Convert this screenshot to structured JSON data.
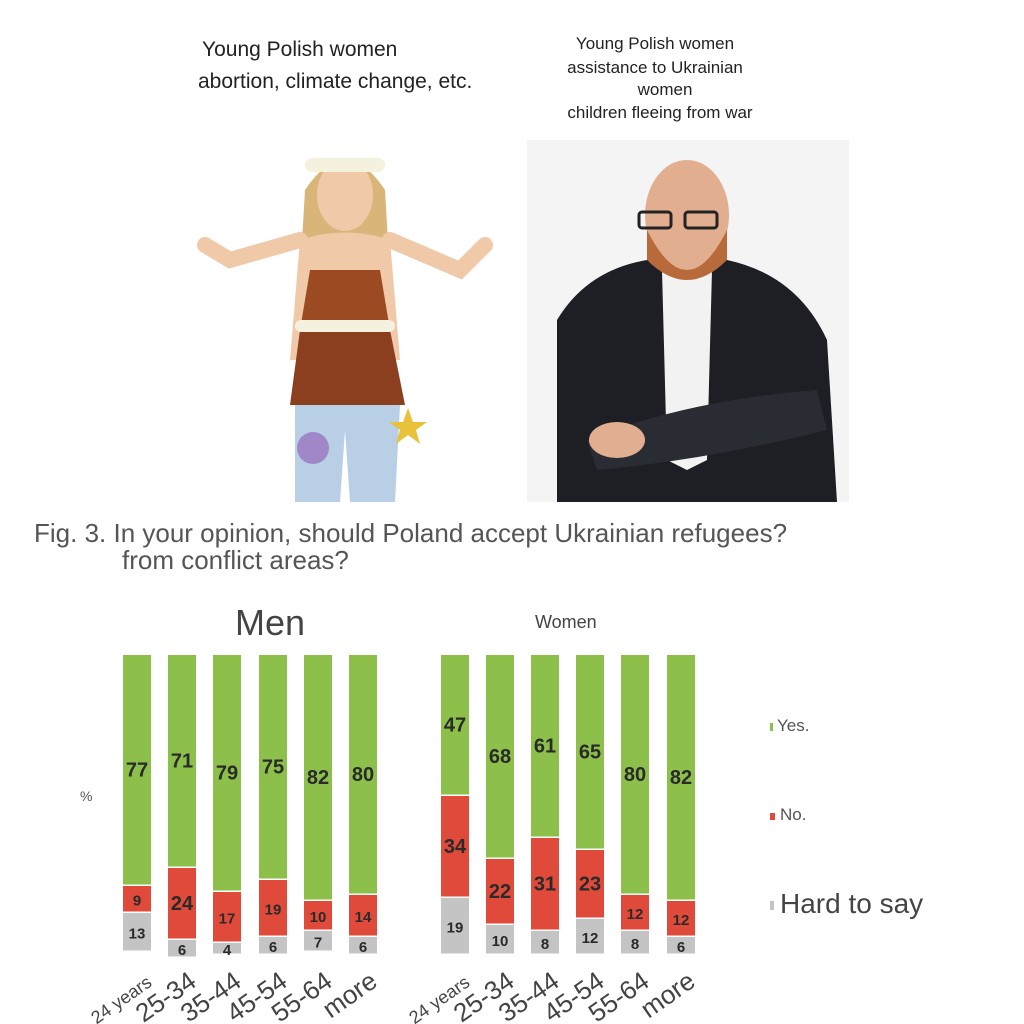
{
  "left_caption": [
    "Young Polish women",
    "abortion, climate change, etc."
  ],
  "right_caption": [
    "Young Polish women",
    "assistance to Ukrainian",
    "women",
    "children fleeing from war"
  ],
  "figure_title": [
    "Fig. 3. In your opinion, should Poland accept Ukrainian refugees?",
    "from conflict areas?"
  ],
  "chart_data": {
    "type": "bar",
    "stacked": true,
    "ylabel": "%",
    "categories": [
      "24 years",
      "25-34",
      "35-44",
      "45-54",
      "55-64",
      "more"
    ],
    "legend_position": "right",
    "legend": [
      "Yes.",
      "No.",
      "Hard to say"
    ],
    "colors": {
      "Yes.": "#8cc04a",
      "No.": "#e04a3a",
      "Hard to say": "#c4c4c4"
    },
    "panels": [
      {
        "title": "Men",
        "series": [
          {
            "name": "Yes.",
            "values": [
              77,
              71,
              79,
              75,
              82,
              80
            ]
          },
          {
            "name": "No.",
            "values": [
              9,
              24,
              17,
              19,
              10,
              14
            ]
          },
          {
            "name": "Hard to say",
            "values": [
              13,
              6,
              4,
              6,
              7,
              6
            ]
          }
        ]
      },
      {
        "title": "Women",
        "series": [
          {
            "name": "Yes.",
            "values": [
              47,
              68,
              61,
              65,
              80,
              82
            ]
          },
          {
            "name": "No.",
            "values": [
              34,
              22,
              31,
              23,
              12,
              12
            ]
          },
          {
            "name": "Hard to say",
            "values": [
              19,
              10,
              8,
              12,
              8,
              6
            ]
          }
        ]
      }
    ]
  }
}
